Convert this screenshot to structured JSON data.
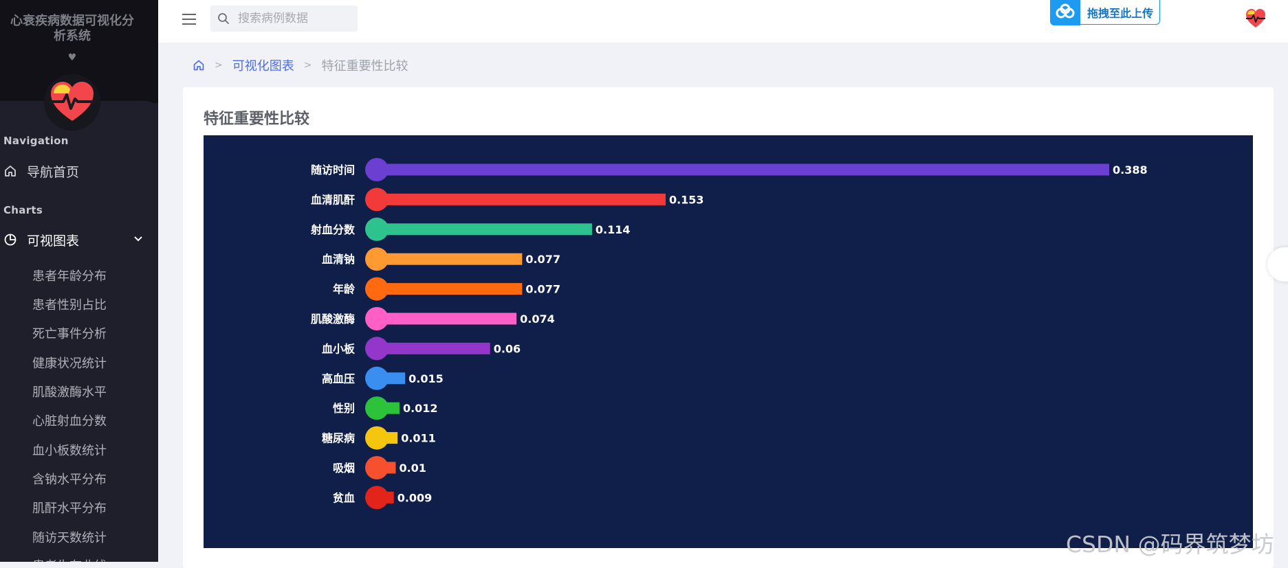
{
  "sidebar": {
    "app_title": "心衰疾病数据可视化分析系统",
    "heart_glyph": "♥",
    "sections": [
      {
        "label": "Navigation"
      },
      {
        "label": "Charts"
      }
    ],
    "nav_home": "导航首页",
    "nav_charts": "可视图表",
    "sub_items": [
      {
        "label": "患者年龄分布"
      },
      {
        "label": "患者性别占比"
      },
      {
        "label": "死亡事件分析"
      },
      {
        "label": "健康状况统计"
      },
      {
        "label": "肌酸激酶水平"
      },
      {
        "label": "心脏射血分数"
      },
      {
        "label": "血小板数统计"
      },
      {
        "label": "含钠水平分布"
      },
      {
        "label": "肌酐水平分布"
      },
      {
        "label": "随访天数统计"
      },
      {
        "label": "患者生存曲线"
      }
    ]
  },
  "topbar": {
    "search_placeholder": "搜索病例数据",
    "upload_label": "拖拽至此上传"
  },
  "breadcrumb": {
    "link": "可视化图表",
    "current": "特征重要性比较"
  },
  "card": {
    "title": "特征重要性比较"
  },
  "chart_data": {
    "type": "bar",
    "orientation": "horizontal",
    "background": "#0f1f4a",
    "categories": [
      "随访时间",
      "血清肌酐",
      "射血分数",
      "血清钠",
      "年龄",
      "肌酸激酶",
      "血小板",
      "高血压",
      "性别",
      "糖尿病",
      "吸烟",
      "贫血"
    ],
    "values": [
      0.388,
      0.153,
      0.114,
      0.077,
      0.077,
      0.074,
      0.06,
      0.015,
      0.012,
      0.011,
      0.01,
      0.009
    ],
    "value_labels": [
      "0.388",
      "0.153",
      "0.114",
      "0.077",
      "0.077",
      "0.074",
      "0.06",
      "0.015",
      "0.012",
      "0.011",
      "0.01",
      "0.009"
    ],
    "colors": [
      "#6a3fd1",
      "#f23a3a",
      "#2ec28e",
      "#ff9a33",
      "#ff6a10",
      "#ff5fc6",
      "#9436c9",
      "#3a8ef0",
      "#2cc33a",
      "#f5c60d",
      "#f7502e",
      "#e3241a"
    ],
    "xlim": [
      0,
      0.388
    ],
    "grid": false,
    "legend": "none"
  },
  "watermark": "CSDN @码界筑梦坊"
}
